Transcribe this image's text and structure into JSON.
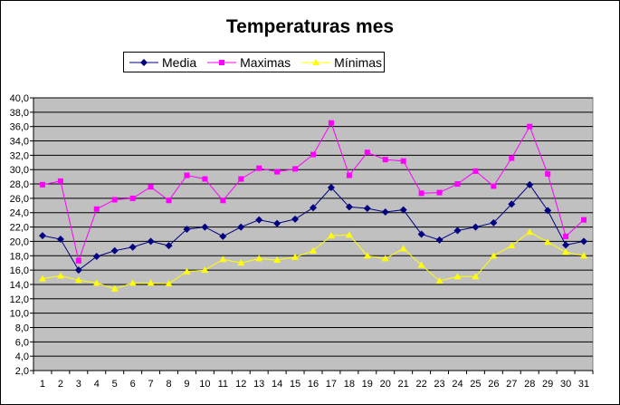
{
  "chart_data": {
    "type": "line",
    "title": "Temperaturas mes",
    "xlabel": "",
    "ylabel": "",
    "categories": [
      "1",
      "2",
      "3",
      "4",
      "5",
      "6",
      "7",
      "8",
      "9",
      "10",
      "11",
      "12",
      "13",
      "14",
      "15",
      "16",
      "17",
      "18",
      "19",
      "20",
      "21",
      "22",
      "23",
      "24",
      "25",
      "26",
      "27",
      "28",
      "29",
      "30",
      "31"
    ],
    "ylim": [
      2.0,
      40.0
    ],
    "yticks": [
      "2,0",
      "4,0",
      "6,0",
      "8,0",
      "10,0",
      "12,0",
      "14,0",
      "16,0",
      "18,0",
      "20,0",
      "22,0",
      "24,0",
      "26,0",
      "28,0",
      "30,0",
      "32,0",
      "34,0",
      "36,0",
      "38,0",
      "40,0"
    ],
    "grid": true,
    "legend_position": "top",
    "plot_background": "#C0C0C0",
    "series": [
      {
        "name": "Media",
        "color": "#000080",
        "marker": "diamond",
        "values": [
          20.8,
          20.3,
          16.0,
          17.9,
          18.7,
          19.2,
          20.0,
          19.4,
          21.7,
          22.0,
          20.7,
          22.0,
          23.0,
          22.5,
          23.1,
          24.7,
          27.5,
          24.8,
          24.6,
          24.1,
          24.4,
          21.0,
          20.2,
          21.5,
          22.0,
          22.6,
          25.2,
          27.9,
          24.3,
          19.5,
          20.0
        ]
      },
      {
        "name": "Maximas",
        "color": "#FF00FF",
        "marker": "square",
        "values": [
          27.9,
          28.4,
          17.3,
          24.5,
          25.8,
          26.0,
          27.6,
          25.7,
          29.2,
          28.7,
          25.7,
          28.7,
          30.2,
          29.7,
          30.1,
          32.1,
          36.5,
          29.2,
          32.4,
          31.4,
          31.2,
          26.7,
          26.8,
          28.0,
          29.8,
          27.7,
          31.6,
          36.0,
          29.4,
          20.7,
          23.0
        ]
      },
      {
        "name": "Mínimas",
        "color": "#FFFF00",
        "marker": "triangle",
        "values": [
          14.8,
          15.2,
          14.6,
          14.2,
          13.4,
          14.2,
          14.2,
          14.1,
          15.8,
          16.0,
          17.5,
          17.0,
          17.6,
          17.4,
          17.8,
          18.7,
          20.8,
          20.9,
          18.0,
          17.6,
          19.0,
          16.7,
          14.5,
          15.1,
          15.1,
          18.0,
          19.4,
          21.3,
          19.9,
          18.5,
          18.0
        ]
      }
    ]
  }
}
